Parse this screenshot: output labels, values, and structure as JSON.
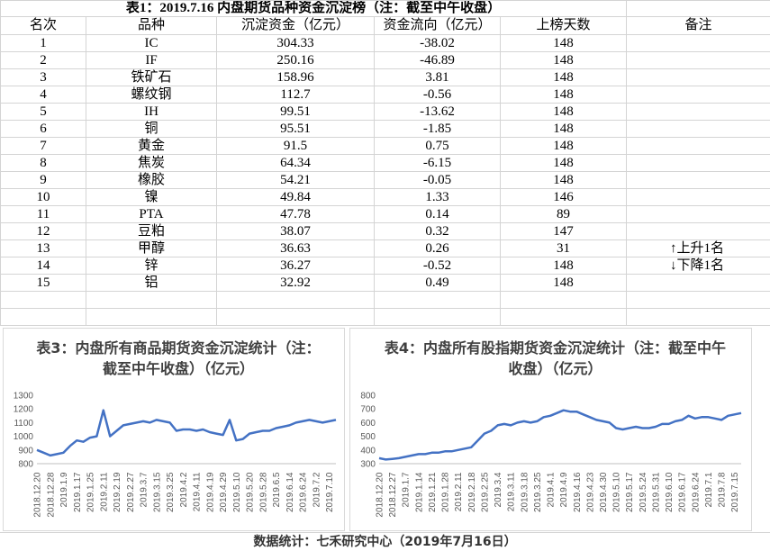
{
  "table": {
    "title": "表1：2019.7.16 内盘期货品种资金沉淀榜（注：截至中午收盘）",
    "header": [
      "名次",
      "品种",
      "沉淀资金（亿元）",
      "资金流向（亿元）",
      "上榜天数",
      "备注"
    ],
    "rows": [
      [
        1,
        "IC",
        304.33,
        -38.02,
        148
      ],
      [
        2,
        "IF",
        250.16,
        -46.89,
        148
      ],
      [
        3,
        "铁矿石",
        158.96,
        3.81,
        148
      ],
      [
        4,
        "螺纹钢",
        112.7,
        -0.56,
        148
      ],
      [
        5,
        "IH",
        99.51,
        -13.62,
        148
      ],
      [
        6,
        "铜",
        95.51,
        -1.85,
        148
      ],
      [
        7,
        "黄金",
        91.5,
        0.75,
        148
      ],
      [
        8,
        "焦炭",
        64.34,
        -6.15,
        148
      ],
      [
        9,
        "橡胶",
        54.21,
        -0.05,
        148
      ],
      [
        10,
        "镍",
        49.84,
        1.33,
        146
      ],
      [
        11,
        "PTA",
        47.78,
        0.14,
        89
      ],
      [
        12,
        "豆粕",
        38.07,
        0.32,
        147
      ],
      [
        13,
        "甲醇",
        36.63,
        0.26,
        31,
        "↑上升1名"
      ],
      [
        14,
        "锌",
        36.27,
        -0.52,
        148,
        "↓下降1名"
      ],
      [
        15,
        "铝",
        32.92,
        0.49,
        148
      ]
    ]
  },
  "chart_data": [
    {
      "type": "line",
      "title": "表3：内盘所有商品期货资金沉淀统计（注：截至中午收盘）（亿元）",
      "color": "#4472c4",
      "categories": [
        "2018.12.20",
        null,
        "2018.12.28",
        null,
        "2019.1.9",
        null,
        "2019.1.17",
        null,
        "2019.1.25",
        null,
        "2019.2.11",
        null,
        "2019.2.19",
        null,
        "2019.2.27",
        null,
        "2019.3.7",
        null,
        "2019.3.15",
        null,
        "2019.3.25",
        null,
        "2019.4.2",
        null,
        "2019.4.11",
        null,
        "2019.4.19",
        null,
        "2019.4.29",
        null,
        "2019.5.10",
        null,
        "2019.5.20",
        null,
        "2019.5.28",
        null,
        "2019.6.5",
        null,
        "2019.6.14",
        null,
        "2019.6.24",
        null,
        "2019.7.2",
        null,
        "2019.7.10",
        null
      ],
      "values": [
        900,
        880,
        860,
        870,
        880,
        930,
        970,
        960,
        990,
        1000,
        1190,
        1000,
        1040,
        1080,
        1090,
        1100,
        1110,
        1100,
        1120,
        1110,
        1100,
        1040,
        1050,
        1050,
        1040,
        1050,
        1030,
        1020,
        1010,
        1120,
        970,
        980,
        1020,
        1030,
        1040,
        1040,
        1060,
        1070,
        1080,
        1100,
        1110,
        1120,
        1110,
        1100,
        1110,
        1120
      ],
      "ylim": [
        800,
        1300
      ],
      "yticks": [
        800,
        900,
        1000,
        1100,
        1200,
        1300
      ],
      "grid": false
    },
    {
      "type": "line",
      "title": "表4：内盘所有股指期货资金沉淀统计（注：截至中午收盘）（亿元）",
      "color": "#4472c4",
      "categories": [
        "2018.12.20",
        null,
        "2018.12.27",
        null,
        "2019.1.7",
        null,
        "2019.1.14",
        null,
        "2019.1.21",
        null,
        "2019.1.28",
        null,
        "2019.2.11",
        null,
        "2019.2.18",
        null,
        "2019.2.25",
        null,
        "2019.3.4",
        null,
        "2019.3.11",
        null,
        "2019.3.18",
        null,
        "2019.3.25",
        null,
        "2019.4.1",
        null,
        "2019.4.9",
        null,
        "2019.4.16",
        null,
        "2019.4.23",
        null,
        "2019.4.30",
        null,
        "2019.5.10",
        null,
        "2019.5.17",
        null,
        "2019.5.24",
        null,
        "2019.5.31",
        null,
        "2019.6.10",
        null,
        "2019.6.17",
        null,
        "2019.6.24",
        null,
        "2019.7.1",
        null,
        "2019.7.8",
        null,
        "2019.7.15",
        null
      ],
      "values": [
        340,
        330,
        335,
        340,
        350,
        360,
        370,
        370,
        380,
        380,
        390,
        390,
        400,
        410,
        420,
        470,
        520,
        540,
        580,
        590,
        580,
        600,
        610,
        600,
        610,
        640,
        650,
        670,
        690,
        680,
        680,
        660,
        640,
        620,
        610,
        600,
        560,
        550,
        560,
        570,
        560,
        560,
        570,
        590,
        590,
        610,
        620,
        650,
        630,
        640,
        640,
        630,
        620,
        650,
        660,
        670
      ],
      "ylim": [
        300,
        800
      ],
      "yticks": [
        300,
        400,
        500,
        600,
        700,
        800
      ],
      "grid": false
    }
  ],
  "footer": "数据统计：七禾研究中心（2019年7月16日）"
}
